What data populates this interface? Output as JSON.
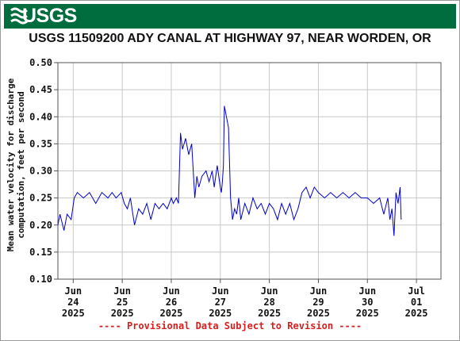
{
  "header": {
    "logo_text": "USGS",
    "brand_color": "#006d3f"
  },
  "title": "USGS 11509200 ADY CANAL AT HIGHWAY 97, NEAR WORDEN, OR",
  "provisional_note": "---- Provisional Data Subject to Revision ----",
  "chart_data": {
    "type": "line",
    "title": "USGS 11509200 ADY CANAL AT HIGHWAY 97, NEAR WORDEN, OR",
    "ylabel": [
      "Mean water velocity for discharge",
      "computation, feet per second"
    ],
    "xlabel": "",
    "ylim": [
      0.1,
      0.5
    ],
    "yticks": [
      "0.10",
      "0.15",
      "0.20",
      "0.25",
      "0.30",
      "0.35",
      "0.40",
      "0.45",
      "0.50"
    ],
    "xlim": [
      "2025-06-23T16:30",
      "2025-07-01T12:00"
    ],
    "xticks": [
      {
        "month": "Jun",
        "day": "24",
        "year": "2025"
      },
      {
        "month": "Jun",
        "day": "25",
        "year": "2025"
      },
      {
        "month": "Jun",
        "day": "26",
        "year": "2025"
      },
      {
        "month": "Jun",
        "day": "27",
        "year": "2025"
      },
      {
        "month": "Jun",
        "day": "28",
        "year": "2025"
      },
      {
        "month": "Jun",
        "day": "29",
        "year": "2025"
      },
      {
        "month": "Jun",
        "day": "30",
        "year": "2025"
      },
      {
        "month": "Jul",
        "day": "01",
        "year": "2025"
      }
    ],
    "grid": true,
    "line_color": "#0000cc",
    "series": [
      {
        "x": [
          "2025-06-23T16:30",
          "2025-06-23T17:30",
          "2025-06-23T19:30",
          "2025-06-23T21:00",
          "2025-06-23T23:00",
          "2025-06-24T00:30",
          "2025-06-24T02:00",
          "2025-06-24T05:00",
          "2025-06-24T08:00",
          "2025-06-24T11:00",
          "2025-06-24T14:00",
          "2025-06-24T17:00",
          "2025-06-24T19:00",
          "2025-06-24T21:00",
          "2025-06-24T23:30",
          "2025-06-25T01:00",
          "2025-06-25T02:30",
          "2025-06-25T04:00",
          "2025-06-25T06:00",
          "2025-06-25T08:00",
          "2025-06-25T10:00",
          "2025-06-25T12:00",
          "2025-06-25T14:00",
          "2025-06-25T16:00",
          "2025-06-25T18:00",
          "2025-06-25T20:00",
          "2025-06-25T22:00",
          "2025-06-26T00:00",
          "2025-06-26T01:00",
          "2025-06-26T02:30",
          "2025-06-26T03:30",
          "2025-06-26T04:30",
          "2025-06-26T05:30",
          "2025-06-26T07:00",
          "2025-06-26T08:30",
          "2025-06-26T10:00",
          "2025-06-26T11:30",
          "2025-06-26T12:30",
          "2025-06-26T13:30",
          "2025-06-26T15:00",
          "2025-06-26T17:00",
          "2025-06-26T18:30",
          "2025-06-26T20:00",
          "2025-06-26T21:00",
          "2025-06-26T22:30",
          "2025-06-27T00:00",
          "2025-06-27T00:30",
          "2025-06-27T01:00",
          "2025-06-27T01:30",
          "2025-06-27T02:00",
          "2025-06-27T03:00",
          "2025-06-27T04:00",
          "2025-06-27T05:00",
          "2025-06-27T06:00",
          "2025-06-27T07:00",
          "2025-06-27T08:00",
          "2025-06-27T09:00",
          "2025-06-27T10:00",
          "2025-06-27T12:00",
          "2025-06-27T14:00",
          "2025-06-27T16:00",
          "2025-06-27T18:00",
          "2025-06-27T20:00",
          "2025-06-27T22:00",
          "2025-06-28T00:00",
          "2025-06-28T02:00",
          "2025-06-28T04:00",
          "2025-06-28T06:00",
          "2025-06-28T08:00",
          "2025-06-28T10:00",
          "2025-06-28T12:00",
          "2025-06-28T14:00",
          "2025-06-28T16:00",
          "2025-06-28T18:00",
          "2025-06-28T20:00",
          "2025-06-28T22:00",
          "2025-06-29T00:00",
          "2025-06-29T03:00",
          "2025-06-29T06:00",
          "2025-06-29T09:00",
          "2025-06-29T12:00",
          "2025-06-29T15:00",
          "2025-06-29T18:00",
          "2025-06-29T21:00",
          "2025-06-30T00:00",
          "2025-06-30T03:00",
          "2025-06-30T06:00",
          "2025-06-30T08:00",
          "2025-06-30T10:00",
          "2025-06-30T11:00",
          "2025-06-30T12:00",
          "2025-06-30T13:00",
          "2025-06-30T14:00",
          "2025-06-30T15:00",
          "2025-06-30T16:00",
          "2025-06-30T16:30"
        ],
        "y": [
          0.2,
          0.22,
          0.19,
          0.22,
          0.21,
          0.25,
          0.26,
          0.25,
          0.26,
          0.24,
          0.26,
          0.25,
          0.26,
          0.25,
          0.26,
          0.24,
          0.23,
          0.25,
          0.2,
          0.23,
          0.22,
          0.24,
          0.21,
          0.24,
          0.23,
          0.24,
          0.23,
          0.25,
          0.24,
          0.25,
          0.24,
          0.37,
          0.34,
          0.36,
          0.33,
          0.35,
          0.25,
          0.29,
          0.27,
          0.29,
          0.3,
          0.28,
          0.3,
          0.27,
          0.31,
          0.27,
          0.26,
          0.28,
          0.31,
          0.42,
          0.4,
          0.38,
          0.25,
          0.21,
          0.23,
          0.22,
          0.25,
          0.21,
          0.24,
          0.22,
          0.25,
          0.23,
          0.24,
          0.22,
          0.24,
          0.23,
          0.21,
          0.24,
          0.22,
          0.24,
          0.21,
          0.23,
          0.26,
          0.27,
          0.25,
          0.27,
          0.26,
          0.25,
          0.26,
          0.25,
          0.26,
          0.25,
          0.26,
          0.25,
          0.25,
          0.24,
          0.25,
          0.22,
          0.25,
          0.21,
          0.23,
          0.18,
          0.26,
          0.24,
          0.27,
          0.21
        ]
      }
    ]
  }
}
